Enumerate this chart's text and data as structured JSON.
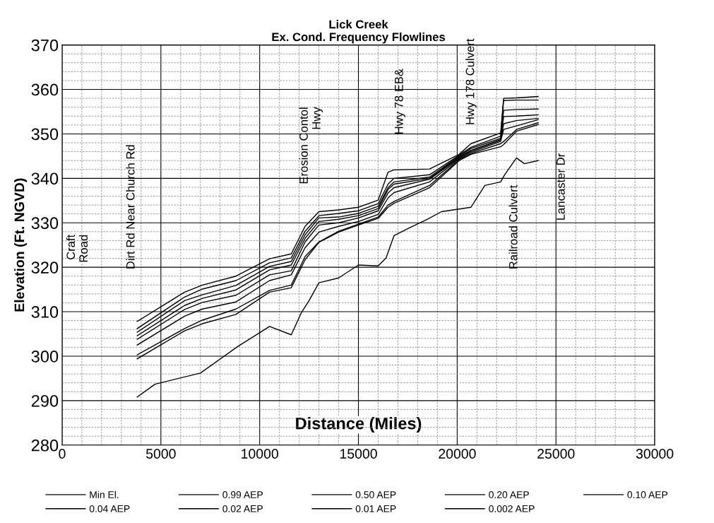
{
  "chart_data": {
    "type": "line",
    "title": "Lick Creek\nEx. Cond. Frequency Flowlines",
    "xlabel": "Distance (Miles)",
    "ylabel": "Elevation (Ft. NGVD)",
    "xlim": [
      0,
      30000
    ],
    "xticks": [
      0,
      5000,
      10000,
      15000,
      20000,
      25000,
      30000
    ],
    "ylim": [
      280,
      370
    ],
    "yticks": [
      280,
      290,
      300,
      310,
      320,
      330,
      340,
      350,
      360,
      370
    ],
    "grid": true,
    "legend": "bottom",
    "marker": "none",
    "line_style": "solid",
    "series": [
      {
        "name": "Min El.",
        "color": "#000000",
        "x": [
          3800,
          4700,
          7000,
          8900,
          10500,
          11600,
          12100,
          12500,
          13000,
          14000,
          15000,
          16000,
          16400,
          16800,
          17600,
          18500,
          19200,
          20700,
          21400,
          22200,
          22400,
          23000,
          23400,
          24100
        ],
        "values": [
          290.8,
          293.7,
          296.2,
          302.2,
          306.7,
          304.8,
          309.7,
          312.5,
          316.5,
          317.6,
          320.5,
          320.3,
          322.1,
          327.1,
          328.9,
          330.8,
          332.5,
          333.5,
          338.4,
          339.2,
          340.8,
          344.6,
          343.3,
          344.0
        ]
      },
      {
        "name": "0.99 AEP",
        "color": "#000000",
        "x": [
          3800,
          6200,
          7100,
          8800,
          10500,
          11600,
          12300,
          13000,
          14000,
          15000,
          16000,
          16500,
          16800,
          18600,
          20100,
          20700,
          22200,
          22350,
          23000,
          24100
        ],
        "values": [
          299.4,
          305.7,
          307.3,
          309.4,
          314.4,
          315.4,
          321.7,
          325.6,
          327.9,
          329.5,
          331.0,
          333.5,
          334.4,
          337.9,
          344.0,
          345.4,
          347.1,
          347.6,
          350.6,
          352.1
        ]
      },
      {
        "name": "0.50 AEP",
        "color": "#000000",
        "x": [
          3800,
          6200,
          7100,
          8800,
          10500,
          11600,
          12300,
          13000,
          14000,
          15000,
          16000,
          16500,
          16800,
          18600,
          20100,
          20700,
          22200,
          22350,
          23000,
          24100
        ],
        "values": [
          300.3,
          306.2,
          308.1,
          310.6,
          314.8,
          316.0,
          322.4,
          325.7,
          328.1,
          329.7,
          331.3,
          334.0,
          334.8,
          338.4,
          344.2,
          345.6,
          347.8,
          348.3,
          351.0,
          352.5
        ]
      },
      {
        "name": "0.20 AEP",
        "color": "#000000",
        "x": [
          3800,
          6200,
          7100,
          8800,
          10500,
          11600,
          12300,
          13000,
          14000,
          15000,
          16000,
          16500,
          16800,
          18600,
          20100,
          20700,
          22200,
          22350,
          23000,
          24100
        ],
        "values": [
          302.5,
          309.0,
          310.6,
          312.2,
          317.0,
          318.3,
          324.4,
          327.9,
          329.2,
          330.3,
          331.9,
          335.6,
          336.8,
          339.2,
          344.4,
          345.9,
          348.3,
          351.0,
          351.8,
          353.2
        ]
      },
      {
        "name": "0.10 AEP",
        "color": "#000000",
        "x": [
          3800,
          6200,
          7100,
          8800,
          10500,
          11600,
          12300,
          13000,
          14000,
          15000,
          16000,
          16500,
          16800,
          18600,
          20100,
          20700,
          22200,
          22350,
          23000,
          24100
        ],
        "values": [
          303.8,
          310.5,
          312.1,
          313.7,
          318.3,
          319.2,
          325.7,
          329.5,
          330.0,
          331.1,
          332.7,
          336.7,
          337.9,
          339.8,
          344.6,
          346.2,
          348.6,
          352.3,
          353.0,
          353.5
        ]
      },
      {
        "name": "0.04 AEP",
        "color": "#000000",
        "x": [
          3800,
          6200,
          7100,
          8800,
          10500,
          11600,
          12300,
          13000,
          14000,
          15000,
          16000,
          16500,
          16800,
          18600,
          20100,
          20700,
          22200,
          22350,
          23000,
          24100
        ],
        "values": [
          304.6,
          311.4,
          313.0,
          314.9,
          319.4,
          320.5,
          326.5,
          330.3,
          330.8,
          331.6,
          333.2,
          337.5,
          338.7,
          340.0,
          344.8,
          346.3,
          348.7,
          353.9,
          354.0,
          354.3
        ]
      },
      {
        "name": "0.02 AEP",
        "color": "#000000",
        "x": [
          3800,
          6200,
          7100,
          8800,
          10500,
          11600,
          12300,
          13000,
          14000,
          15000,
          16000,
          16500,
          16800,
          18600,
          20100,
          20700,
          22200,
          22350,
          23000,
          24100
        ],
        "values": [
          305.4,
          312.5,
          313.8,
          315.9,
          320.2,
          321.3,
          327.3,
          331.1,
          331.3,
          332.1,
          333.7,
          337.9,
          339.2,
          340.3,
          345.0,
          346.7,
          349.0,
          355.3,
          355.5,
          355.6
        ]
      },
      {
        "name": "0.01 AEP",
        "color": "#000000",
        "x": [
          3800,
          6200,
          7100,
          8800,
          10500,
          11600,
          12300,
          13000,
          14000,
          15000,
          16000,
          16500,
          16800,
          18600,
          20100,
          20700,
          22200,
          22350,
          23000,
          24100
        ],
        "values": [
          306.2,
          313.3,
          315.1,
          317.0,
          321.0,
          322.1,
          328.1,
          331.6,
          332.1,
          332.7,
          334.3,
          338.7,
          340.0,
          340.8,
          345.2,
          347.0,
          349.5,
          357.5,
          357.6,
          357.6
        ]
      },
      {
        "name": "0.002 AEP",
        "color": "#000000",
        "x": [
          3800,
          6200,
          7100,
          8800,
          10500,
          11600,
          12300,
          13000,
          14000,
          15000,
          16000,
          16500,
          16800,
          18600,
          20100,
          20700,
          22200,
          22350,
          23000,
          24100
        ],
        "values": [
          307.8,
          314.4,
          316.0,
          318.0,
          321.9,
          323.0,
          329.2,
          332.5,
          332.9,
          333.5,
          335.1,
          341.4,
          341.9,
          342.1,
          345.4,
          347.8,
          350.2,
          358.0,
          358.1,
          358.4
        ]
      }
    ],
    "annotations": [
      "Craft\nRoad",
      "Dirt Rd Near Church Rd",
      "Erosion Contol\nHwy",
      "Hwy 78 EB&",
      "Hwy 178 Culvert",
      "Railroad Culvert",
      "Lancaster Dr"
    ]
  }
}
